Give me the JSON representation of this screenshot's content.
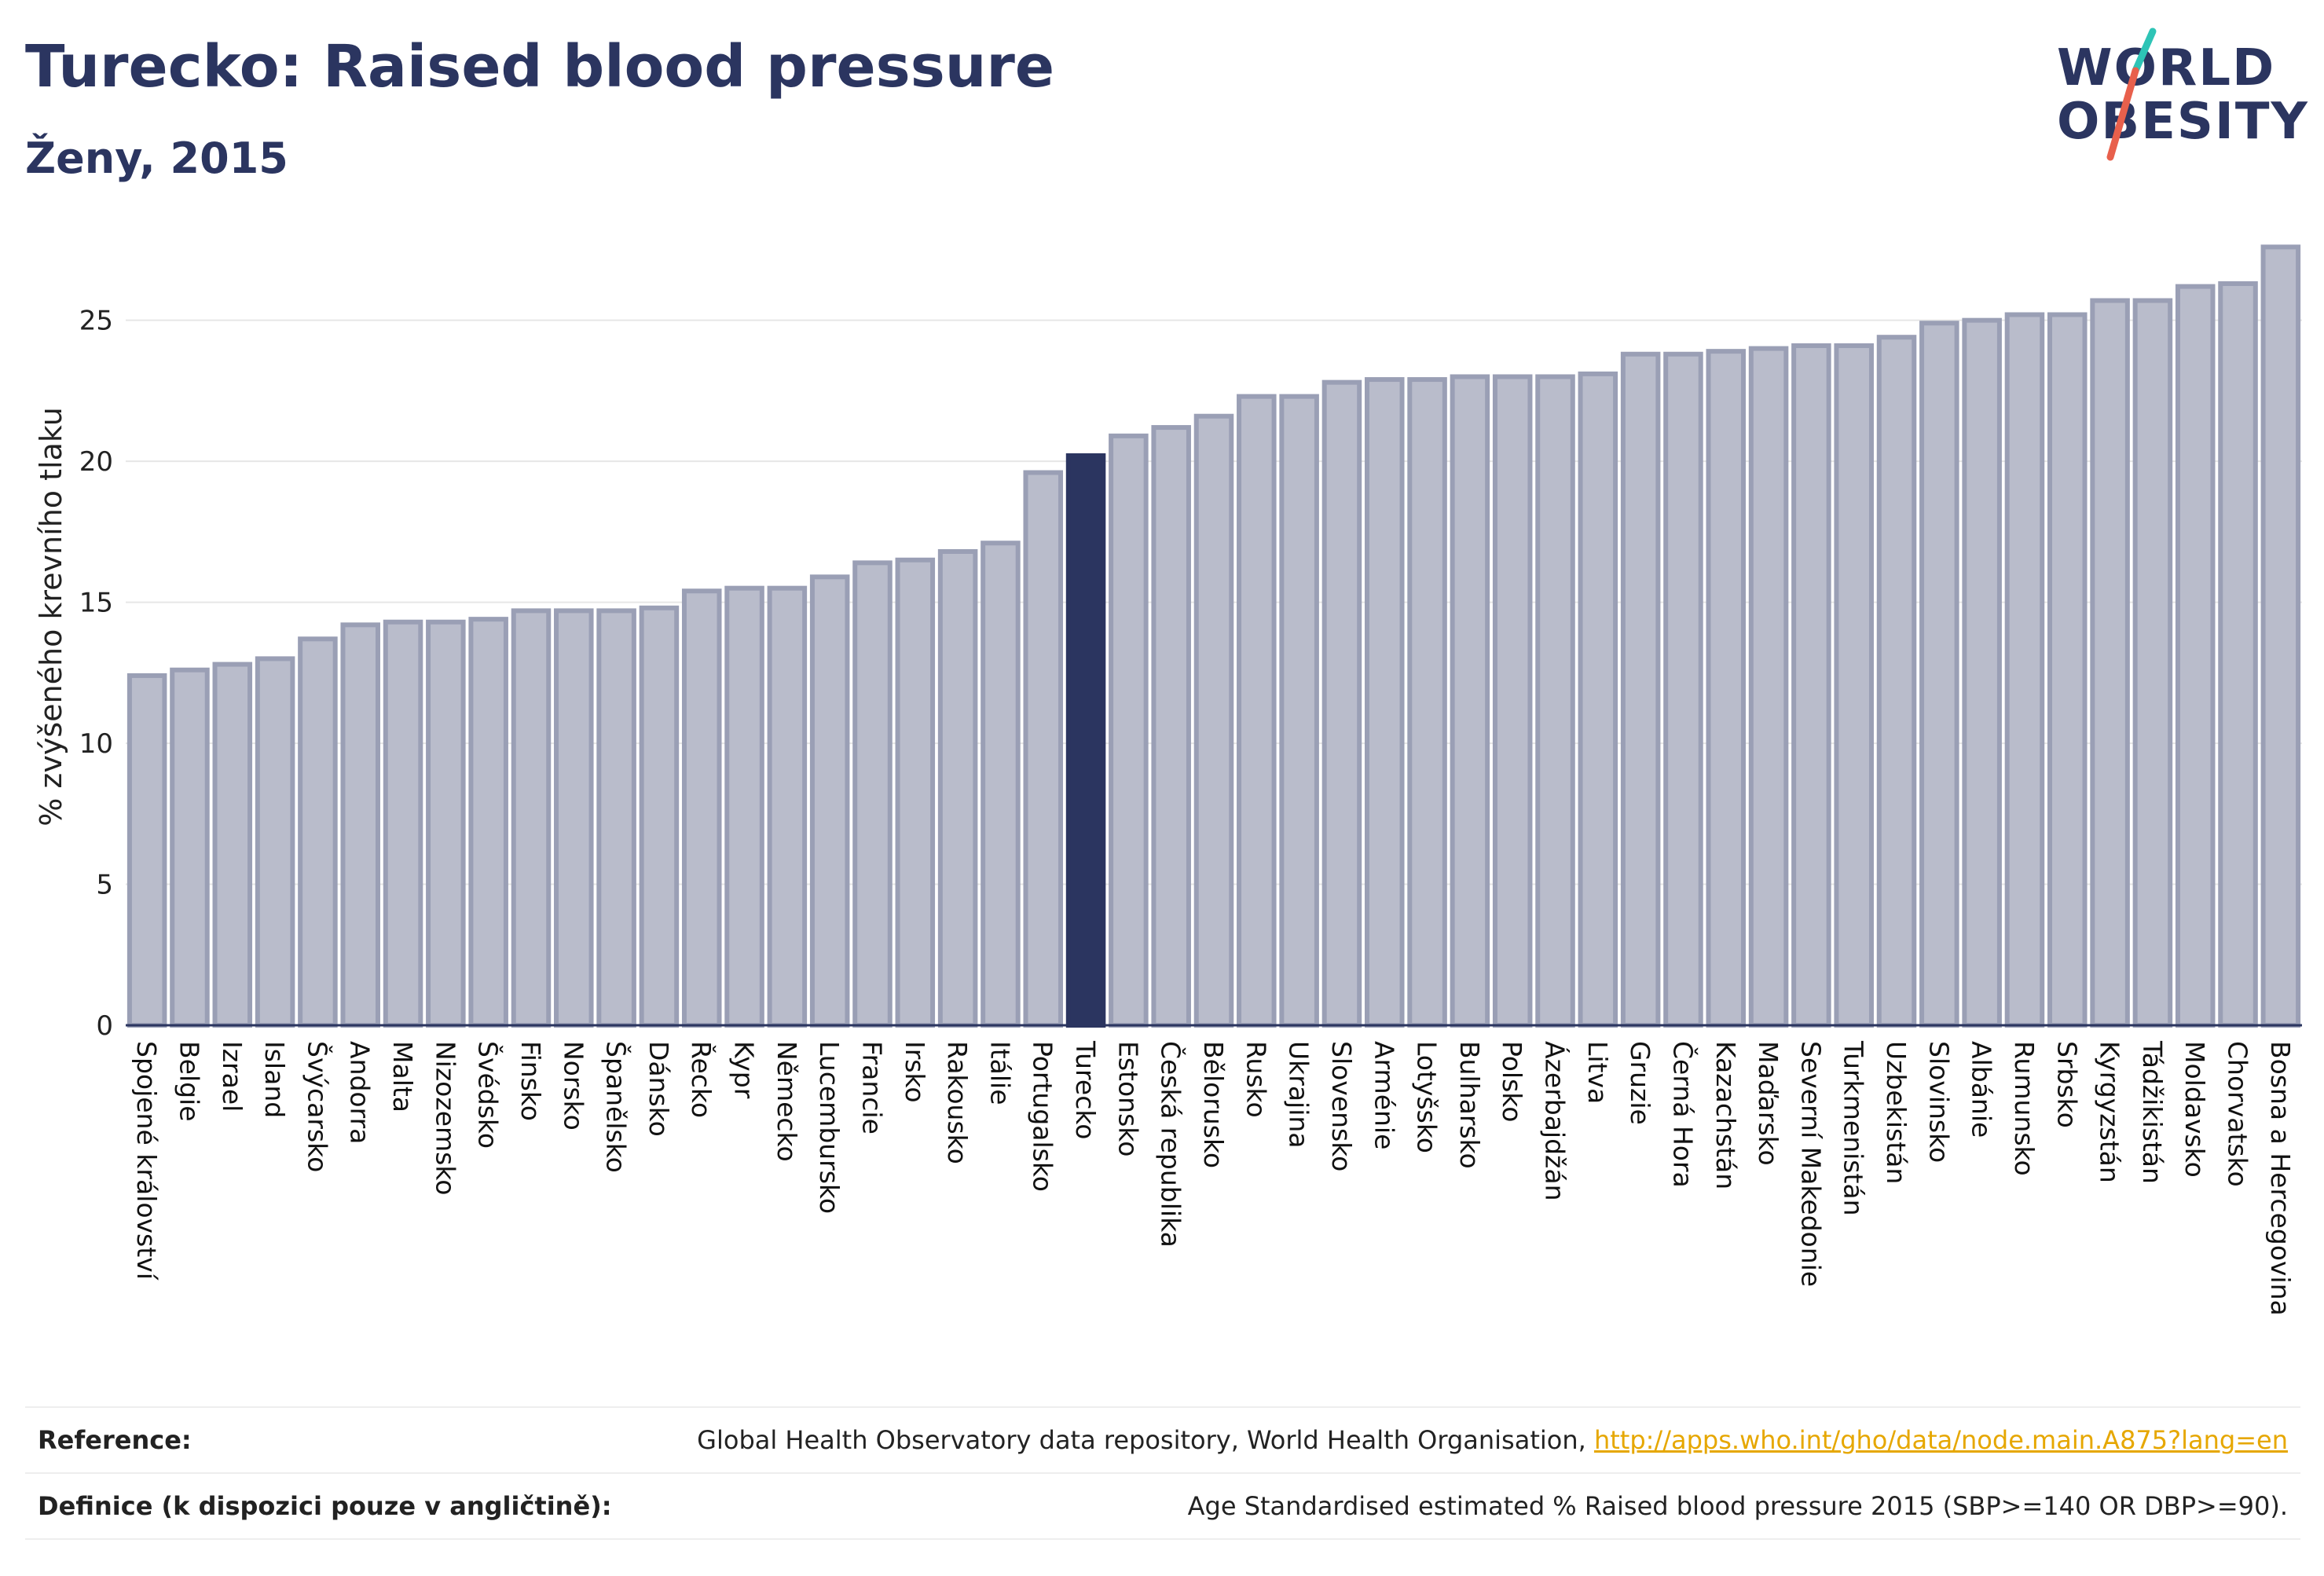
{
  "header": {
    "title": "Turecko: Raised blood pressure",
    "subtitle": "Ženy, 2015"
  },
  "logo": {
    "line1": "WORLD",
    "line2": "OBESITY",
    "accent_colors": [
      "#2ec4b6",
      "#e8604c"
    ]
  },
  "chart_data": {
    "type": "bar",
    "ylabel": "% zvýšeného krevního tlaku",
    "ylim": [
      0,
      28
    ],
    "yticks": [
      0,
      5,
      10,
      15,
      20,
      25
    ],
    "grid": true,
    "highlight": "Turecko",
    "colors": {
      "bar": "#b9bccb",
      "bar_stroke": "#9a9fb5",
      "highlight": "#2b3560"
    },
    "categories": [
      "Spojené království",
      "Belgie",
      "Izrael",
      "Island",
      "Švýcarsko",
      "Andorra",
      "Malta",
      "Nizozemsko",
      "Švédsko",
      "Finsko",
      "Norsko",
      "Španělsko",
      "Dánsko",
      "Řecko",
      "Kypr",
      "Německo",
      "Lucembursko",
      "Francie",
      "Irsko",
      "Rakousko",
      "Itálie",
      "Portugalsko",
      "Turecko",
      "Estonsko",
      "Česká republika",
      "Bělorusko",
      "Rusko",
      "Ukrajina",
      "Slovensko",
      "Arménie",
      "Lotyšsko",
      "Bulharsko",
      "Polsko",
      "Ázerbajdžán",
      "Litva",
      "Gruzie",
      "Černá Hora",
      "Kazachstán",
      "Maďarsko",
      "Severní Makedonie",
      "Turkmenistán",
      "Uzbekistán",
      "Slovinsko",
      "Albánie",
      "Rumunsko",
      "Srbsko",
      "Kyrgyzstán",
      "Tádžikistán",
      "Moldavsko",
      "Chorvatsko",
      "Bosna a Hercegovina"
    ],
    "values": [
      12.4,
      12.6,
      12.8,
      13.0,
      13.7,
      14.2,
      14.3,
      14.3,
      14.4,
      14.7,
      14.7,
      14.7,
      14.8,
      15.4,
      15.5,
      15.5,
      15.9,
      16.4,
      16.5,
      16.8,
      17.1,
      19.6,
      20.2,
      20.9,
      21.2,
      21.6,
      22.3,
      22.3,
      22.8,
      22.9,
      22.9,
      23.0,
      23.0,
      23.0,
      23.1,
      23.8,
      23.8,
      23.9,
      24.0,
      24.1,
      24.1,
      24.4,
      24.9,
      25.0,
      25.2,
      25.2,
      25.7,
      25.7,
      26.2,
      26.3,
      27.6
    ]
  },
  "references": [
    {
      "key": "Reference:",
      "text": "Global Health Observatory data repository, World Health Organisation, ",
      "link": "http://apps.who.int/gho/data/node.main.A875?lang=en"
    },
    {
      "key": "Definice (k dispozici pouze v angličtině):",
      "text": "Age Standardised estimated % Raised blood pressure 2015 (SBP>=140 OR DBP>=90).",
      "link": ""
    }
  ]
}
